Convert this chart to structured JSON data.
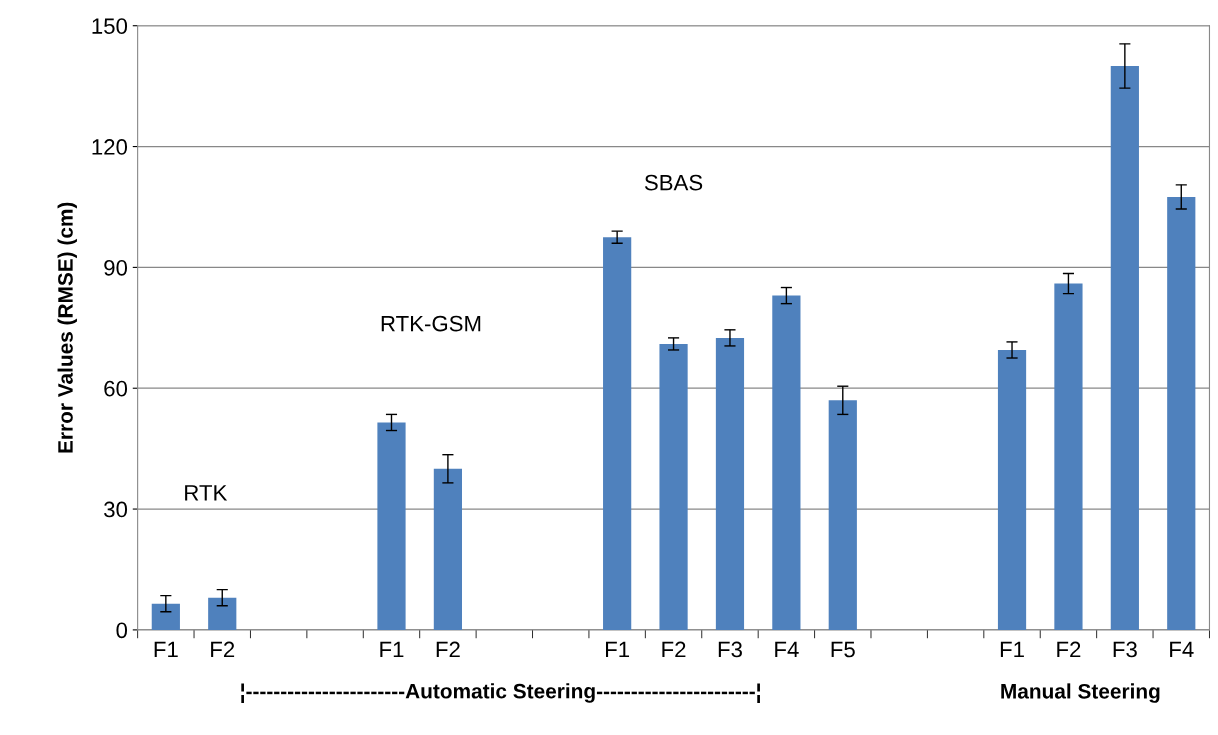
{
  "chart_data": {
    "type": "bar",
    "ylabel": "Error Values (RMSE) (cm)",
    "categories": [
      "F1",
      "F2",
      null,
      null,
      "F1",
      "F2",
      null,
      null,
      "F1",
      "F2",
      "F3",
      "F4",
      "F5",
      null,
      null,
      "F1",
      "F2",
      "F3",
      "F4"
    ],
    "series": [
      {
        "color": "#4f81bd",
        "values": [
          6.5,
          8,
          null,
          null,
          51.5,
          40,
          null,
          null,
          97.5,
          71,
          72.5,
          83,
          57,
          null,
          null,
          69.5,
          86,
          140,
          107.5
        ],
        "errors": [
          2,
          2,
          null,
          null,
          2,
          3.5,
          null,
          null,
          1.5,
          1.5,
          2,
          2,
          3.5,
          null,
          null,
          2,
          2.5,
          5.5,
          3
        ]
      }
    ],
    "ylim": [
      0,
      150
    ],
    "yticks": [
      0,
      30,
      60,
      90,
      120,
      150
    ],
    "grid": "y",
    "annotations": [
      "RTK",
      "RTK-GSM",
      "SBAS",
      "¦-----------------------Automatic Steering-----------------------¦",
      "Manual Steering"
    ]
  }
}
